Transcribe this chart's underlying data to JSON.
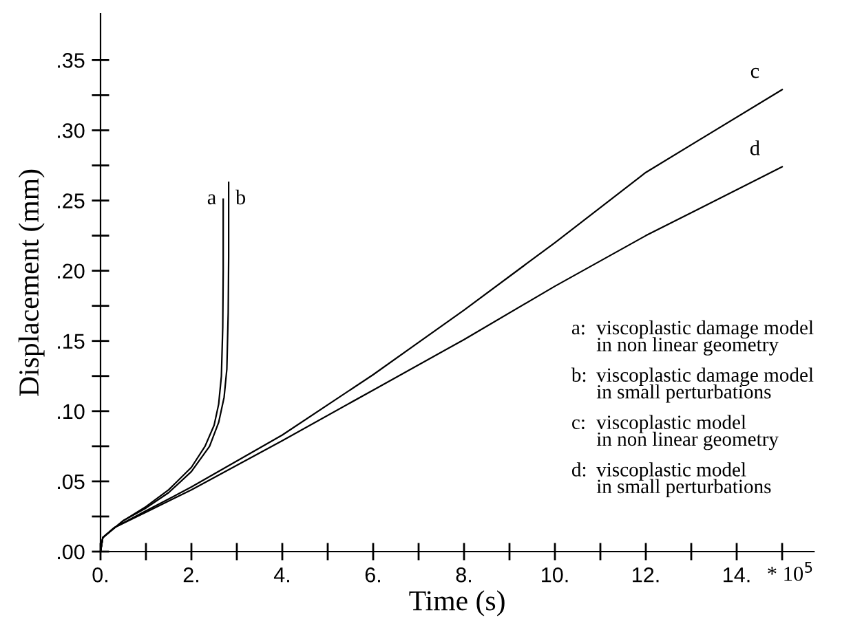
{
  "chart_data": {
    "type": "line",
    "xlabel": "Time (s)",
    "ylabel": "Displacement (mm)",
    "xlim": [
      0,
      15.7
    ],
    "ylim": [
      0,
      0.383
    ],
    "xticks": [
      {
        "value": 0,
        "label": "0."
      },
      {
        "value": 1,
        "label": null
      },
      {
        "value": 2,
        "label": "2."
      },
      {
        "value": 3,
        "label": null
      },
      {
        "value": 4,
        "label": "4."
      },
      {
        "value": 5,
        "label": null
      },
      {
        "value": 6,
        "label": "6."
      },
      {
        "value": 7,
        "label": null
      },
      {
        "value": 8,
        "label": "8."
      },
      {
        "value": 9,
        "label": null
      },
      {
        "value": 10,
        "label": "10."
      },
      {
        "value": 11,
        "label": null
      },
      {
        "value": 12,
        "label": "12."
      },
      {
        "value": 13,
        "label": null
      },
      {
        "value": 14,
        "label": "14."
      },
      {
        "value": 15,
        "label": null
      }
    ],
    "yticks": [
      {
        "value": 0,
        "label": ".00"
      },
      {
        "value": 0.025,
        "label": null
      },
      {
        "value": 0.05,
        "label": ".05"
      },
      {
        "value": 0.075,
        "label": null
      },
      {
        "value": 0.1,
        "label": ".10"
      },
      {
        "value": 0.125,
        "label": null
      },
      {
        "value": 0.15,
        "label": ".15"
      },
      {
        "value": 0.175,
        "label": null
      },
      {
        "value": 0.2,
        "label": ".20"
      },
      {
        "value": 0.225,
        "label": null
      },
      {
        "value": 0.25,
        "label": ".25"
      },
      {
        "value": 0.275,
        "label": null
      },
      {
        "value": 0.3,
        "label": ".30"
      },
      {
        "value": 0.325,
        "label": null
      },
      {
        "value": 0.35,
        "label": ".35"
      }
    ],
    "grid": false,
    "legend": false,
    "marker": "none",
    "line_style": "solid",
    "series": [
      {
        "name": "a",
        "color": "#000000",
        "x": [
          0,
          0.05,
          0.5,
          1,
          1.5,
          2,
          2.3,
          2.5,
          2.6,
          2.66,
          2.69,
          2.7,
          2.7
        ],
        "values": [
          0,
          0.01,
          0.022,
          0.032,
          0.044,
          0.06,
          0.075,
          0.09,
          0.105,
          0.125,
          0.16,
          0.2,
          0.251
        ]
      },
      {
        "name": "b",
        "color": "#000000",
        "x": [
          0,
          0.05,
          0.5,
          1,
          1.5,
          2,
          2.4,
          2.6,
          2.72,
          2.78,
          2.81,
          2.82,
          2.82
        ],
        "values": [
          0,
          0.01,
          0.022,
          0.031,
          0.042,
          0.057,
          0.075,
          0.092,
          0.11,
          0.13,
          0.17,
          0.21,
          0.263
        ]
      },
      {
        "name": "c",
        "color": "#000000",
        "x": [
          0,
          0.05,
          0.3,
          1,
          2,
          4,
          6,
          8,
          10,
          12,
          15
        ],
        "values": [
          0,
          0.01,
          0.017,
          0.029,
          0.046,
          0.083,
          0.126,
          0.172,
          0.22,
          0.27,
          0.329
        ]
      },
      {
        "name": "d",
        "color": "#000000",
        "x": [
          0,
          0.05,
          0.3,
          1,
          2,
          4,
          6,
          8,
          10,
          12,
          15
        ],
        "values": [
          0,
          0.01,
          0.017,
          0.028,
          0.044,
          0.079,
          0.115,
          0.151,
          0.189,
          0.225,
          0.274
        ]
      }
    ],
    "annotations": [
      "* 10$^{5}$",
      "a:\tviscoplastic damage model\nin non linear geometry",
      "b:\tviscoplastic damage model\nin small perturbations",
      "c:\tviscoplastic model\nin non linear geometry",
      "d:\tviscoplastic model\nin small perturbations"
    ]
  }
}
